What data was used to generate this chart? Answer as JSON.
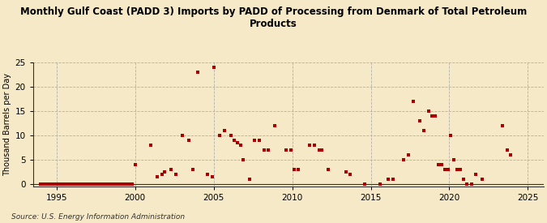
{
  "title": "Monthly Gulf Coast (PADD 3) Imports by PADD of Processing from Denmark of Total Petroleum\nProducts",
  "ylabel": "Thousand Barrels per Day",
  "source": "Source: U.S. Energy Information Administration",
  "background_color": "#f5e9c8",
  "plot_bg_color": "#f5e9c8",
  "marker_color": "#aa0000",
  "xlim": [
    1993.5,
    2026
  ],
  "ylim": [
    -0.5,
    25
  ],
  "yticks": [
    0,
    5,
    10,
    15,
    20,
    25
  ],
  "xticks": [
    1995,
    2000,
    2005,
    2010,
    2015,
    2020,
    2025
  ],
  "data_points": [
    [
      1994.0,
      0
    ],
    [
      1994.2,
      0
    ],
    [
      1994.4,
      0
    ],
    [
      1994.6,
      0
    ],
    [
      1994.8,
      0
    ],
    [
      1995.0,
      0
    ],
    [
      1995.2,
      0
    ],
    [
      1995.4,
      0
    ],
    [
      1995.6,
      0
    ],
    [
      1995.8,
      0
    ],
    [
      1996.0,
      0
    ],
    [
      1996.2,
      0
    ],
    [
      1996.4,
      0
    ],
    [
      1996.6,
      0
    ],
    [
      1996.8,
      0
    ],
    [
      1997.0,
      0
    ],
    [
      1997.2,
      0
    ],
    [
      1997.4,
      0
    ],
    [
      1997.6,
      0
    ],
    [
      1997.8,
      0
    ],
    [
      1998.0,
      0
    ],
    [
      1998.2,
      0
    ],
    [
      1998.4,
      0
    ],
    [
      1998.6,
      0
    ],
    [
      1998.8,
      0
    ],
    [
      1999.0,
      0
    ],
    [
      1999.2,
      0
    ],
    [
      1999.4,
      0
    ],
    [
      1999.6,
      0
    ],
    [
      1999.8,
      0
    ],
    [
      2000.0,
      4
    ],
    [
      2001.0,
      8
    ],
    [
      2001.4,
      1.5
    ],
    [
      2001.7,
      2
    ],
    [
      2001.9,
      2.5
    ],
    [
      2002.3,
      3
    ],
    [
      2002.6,
      2
    ],
    [
      2003.0,
      10
    ],
    [
      2003.4,
      9
    ],
    [
      2003.7,
      3
    ],
    [
      2004.0,
      23
    ],
    [
      2004.6,
      2
    ],
    [
      2004.9,
      1.5
    ],
    [
      2005.0,
      24
    ],
    [
      2005.4,
      10
    ],
    [
      2005.7,
      11
    ],
    [
      2006.1,
      10
    ],
    [
      2006.3,
      9
    ],
    [
      2006.5,
      8.5
    ],
    [
      2006.7,
      8
    ],
    [
      2006.9,
      5
    ],
    [
      2007.3,
      1
    ],
    [
      2007.6,
      9
    ],
    [
      2007.9,
      9
    ],
    [
      2008.2,
      7
    ],
    [
      2008.5,
      7
    ],
    [
      2008.9,
      12
    ],
    [
      2009.6,
      7
    ],
    [
      2009.9,
      7
    ],
    [
      2010.1,
      3
    ],
    [
      2010.4,
      3
    ],
    [
      2011.1,
      8
    ],
    [
      2011.4,
      8
    ],
    [
      2011.7,
      7
    ],
    [
      2011.9,
      7
    ],
    [
      2012.3,
      3
    ],
    [
      2013.4,
      2.5
    ],
    [
      2013.7,
      2
    ],
    [
      2014.6,
      0
    ],
    [
      2015.6,
      0
    ],
    [
      2016.1,
      1
    ],
    [
      2016.4,
      1
    ],
    [
      2017.1,
      5
    ],
    [
      2017.4,
      6
    ],
    [
      2017.7,
      17
    ],
    [
      2018.1,
      13
    ],
    [
      2018.4,
      11
    ],
    [
      2018.7,
      15
    ],
    [
      2018.9,
      14
    ],
    [
      2019.1,
      14
    ],
    [
      2019.3,
      4
    ],
    [
      2019.5,
      4
    ],
    [
      2019.7,
      3
    ],
    [
      2019.9,
      3
    ],
    [
      2020.1,
      10
    ],
    [
      2020.3,
      5
    ],
    [
      2020.5,
      3
    ],
    [
      2020.7,
      3
    ],
    [
      2020.9,
      1
    ],
    [
      2021.1,
      0
    ],
    [
      2021.4,
      0
    ],
    [
      2021.7,
      2
    ],
    [
      2022.1,
      1
    ],
    [
      2023.4,
      12
    ],
    [
      2023.7,
      7
    ],
    [
      2023.9,
      6
    ]
  ]
}
